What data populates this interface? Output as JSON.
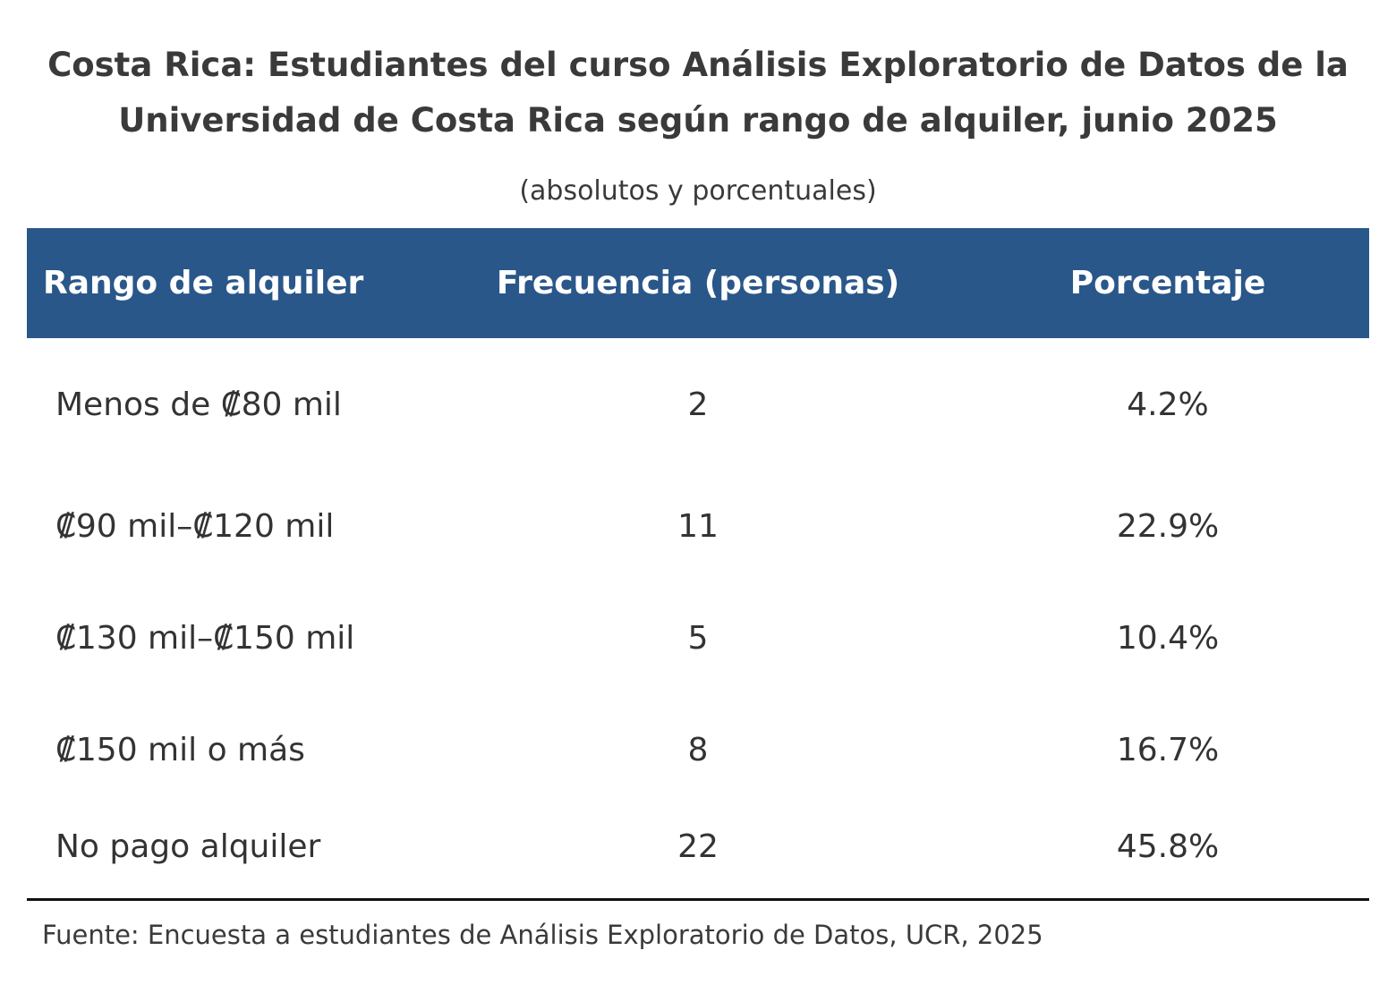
{
  "chart_data": {
    "type": "table",
    "title_lines": [
      "Costa Rica: Estudiantes del curso Análisis Exploratorio de Datos de la",
      "Universidad de Costa Rica según rango de alquiler, junio 2025"
    ],
    "subtitle": "(absolutos y porcentuales)",
    "columns": [
      "Rango de alquiler",
      "Frecuencia (personas)",
      "Porcentaje"
    ],
    "rows": [
      {
        "rango": "Menos de ₡80 mil",
        "frecuencia": "2",
        "porcentaje": "4.2%"
      },
      {
        "rango": "₡90 mil–₡120 mil",
        "frecuencia": "11",
        "porcentaje": "22.9%"
      },
      {
        "rango": "₡130 mil–₡150 mil",
        "frecuencia": "5",
        "porcentaje": "10.4%"
      },
      {
        "rango": "₡150 mil o más",
        "frecuencia": "8",
        "porcentaje": "16.7%"
      },
      {
        "rango": "No pago alquiler",
        "frecuencia": "22",
        "porcentaje": "45.8%"
      }
    ],
    "source": "Fuente: Encuesta a estudiantes de Análisis Exploratorio de Datos, UCR, 2025",
    "colors": {
      "header_background": "#2a578a",
      "header_text": "#ffffff",
      "body_text": "#333333"
    }
  }
}
